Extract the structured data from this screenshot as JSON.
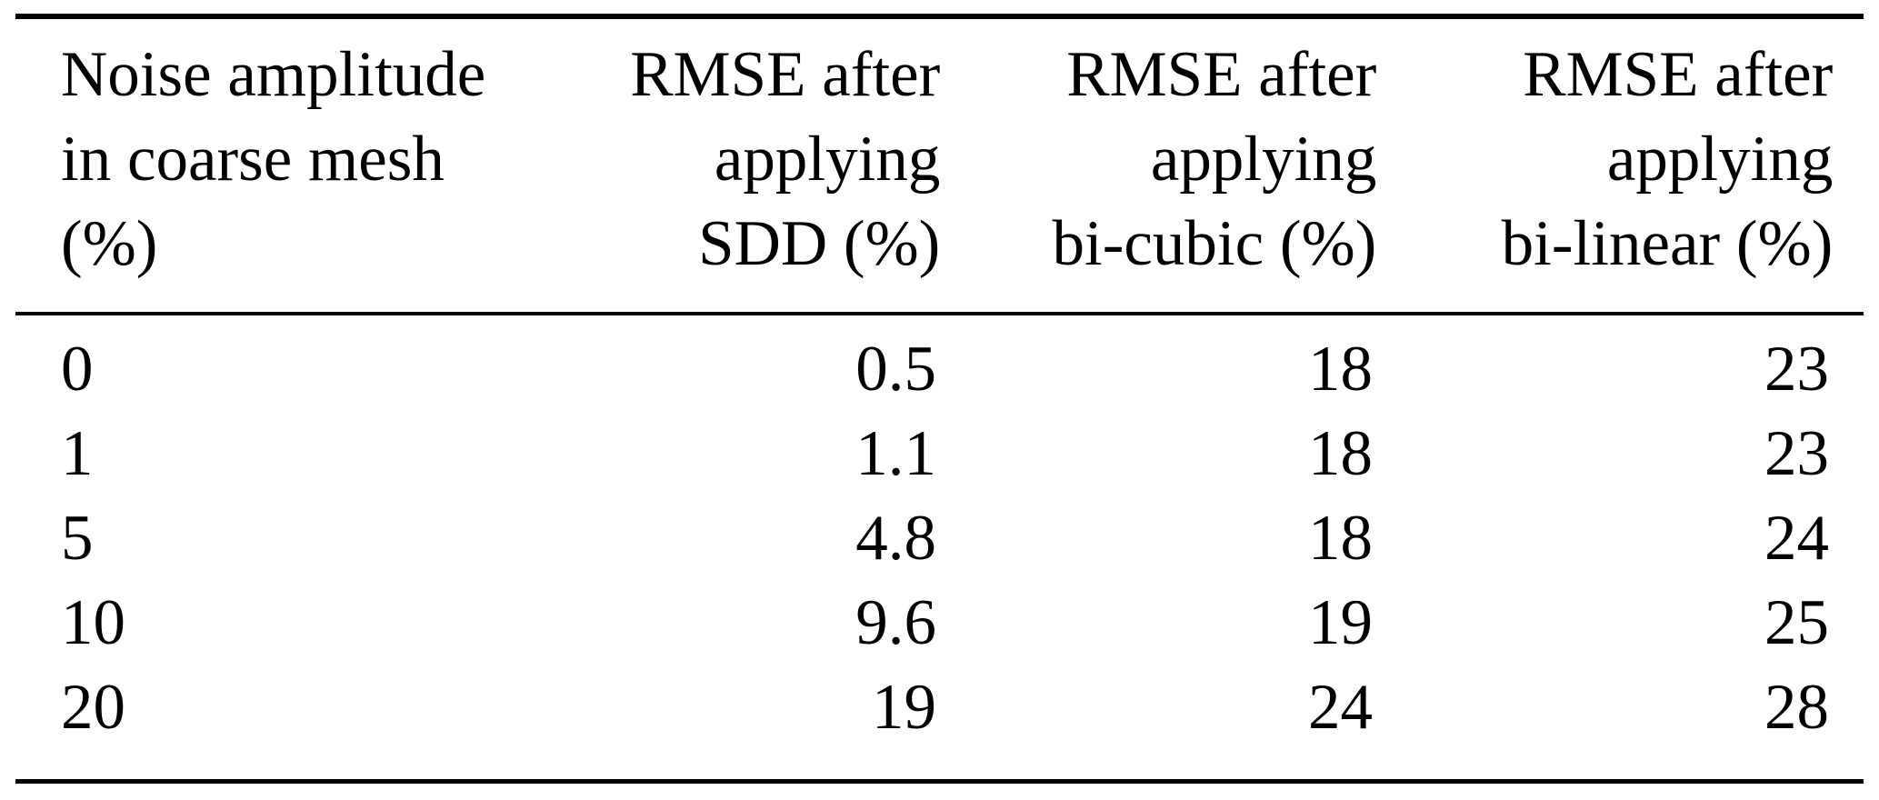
{
  "table": {
    "headers": [
      {
        "id": "noise-amplitude",
        "lines": [
          "Noise amplitude",
          "in coarse mesh",
          "(%)"
        ]
      },
      {
        "id": "rmse-sdd",
        "lines": [
          "RMSE after",
          "applying",
          "SDD (%)"
        ]
      },
      {
        "id": "rmse-bicubic",
        "lines": [
          "RMSE after",
          "applying",
          "bi-cubic (%)"
        ]
      },
      {
        "id": "rmse-bilinear",
        "lines": [
          "RMSE after",
          "applying",
          "bi-linear (%)"
        ]
      }
    ],
    "rows": [
      {
        "cells": [
          "0",
          "0.5",
          "18",
          "23"
        ]
      },
      {
        "cells": [
          "1",
          "1.1",
          "18",
          "23"
        ]
      },
      {
        "cells": [
          "5",
          "4.8",
          "18",
          "24"
        ]
      },
      {
        "cells": [
          "10",
          "9.6",
          "19",
          "25"
        ]
      },
      {
        "cells": [
          "20",
          "19",
          "24",
          "28"
        ]
      }
    ]
  },
  "colors": {
    "text": "#000000",
    "background": "#ffffff",
    "rule": "#000000"
  }
}
